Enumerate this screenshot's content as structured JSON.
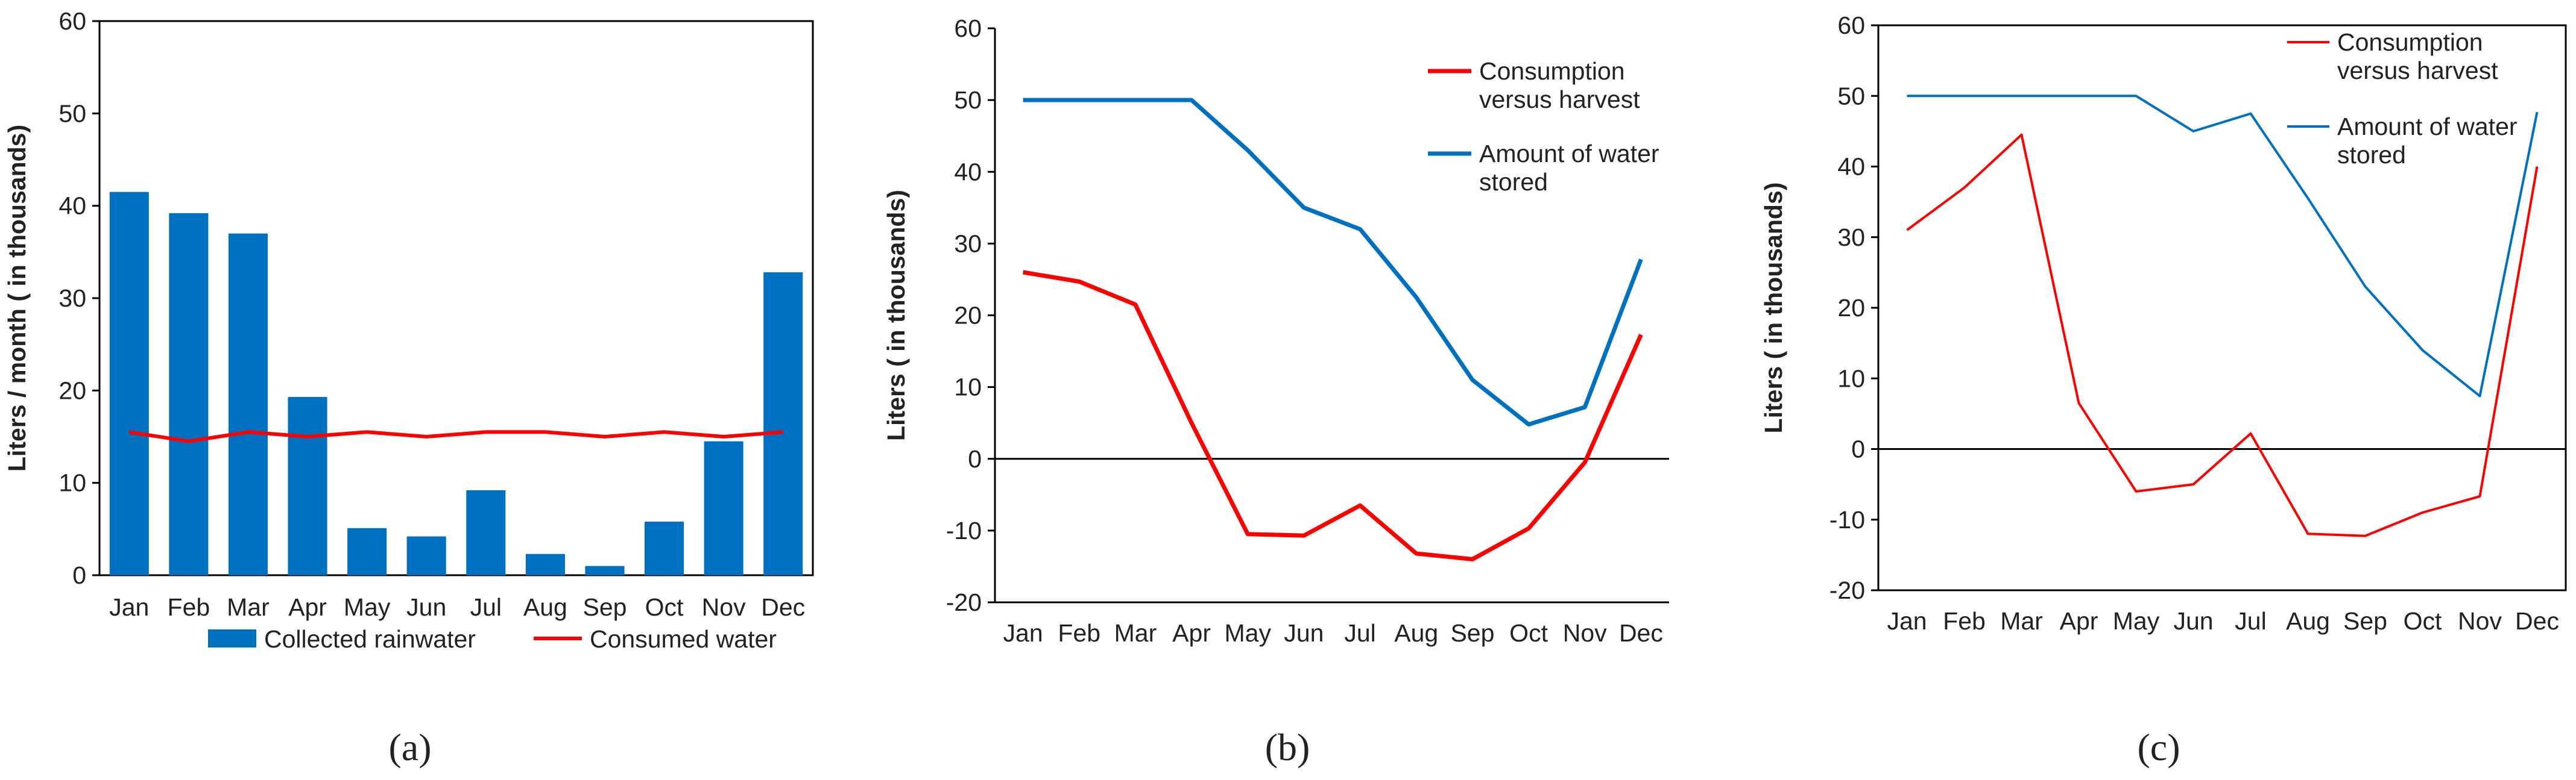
{
  "captions": [
    "(a)",
    "(b)",
    "(c)"
  ],
  "chart_data": [
    {
      "type": "bar",
      "title": "",
      "xlabel": "",
      "ylabel": "Liters / month ( in thousands)",
      "ylim": [
        0,
        60
      ],
      "yticks": [
        0,
        10,
        20,
        30,
        40,
        50,
        60
      ],
      "categories": [
        "Jan",
        "Feb",
        "Mar",
        "Apr",
        "May",
        "Jun",
        "Jul",
        "Aug",
        "Sep",
        "Oct",
        "Nov",
        "Dec"
      ],
      "series": [
        {
          "name": "Collected rainwater",
          "kind": "bar",
          "color": "#0070C0",
          "values": [
            41.5,
            39.2,
            37.0,
            19.3,
            5.1,
            4.2,
            9.2,
            2.3,
            1.0,
            5.8,
            14.5,
            32.8
          ]
        },
        {
          "name": "Consumed water",
          "kind": "line",
          "color": "#FF0000",
          "values": [
            15.5,
            14.5,
            15.5,
            15.0,
            15.5,
            15.0,
            15.5,
            15.5,
            15.0,
            15.5,
            15.0,
            15.5
          ]
        }
      ],
      "legend": "bottom",
      "grid": false
    },
    {
      "type": "line",
      "title": "",
      "xlabel": "",
      "ylabel": "Liters ( in thousands)",
      "ylim": [
        -20,
        60
      ],
      "yticks": [
        -20,
        -10,
        0,
        10,
        20,
        30,
        40,
        50,
        60
      ],
      "categories": [
        "Jan",
        "Feb",
        "Mar",
        "Apr",
        "May",
        "Jun",
        "Jul",
        "Aug",
        "Sep",
        "Oct",
        "Nov",
        "Dec"
      ],
      "series": [
        {
          "name": "Consumption versus harvest",
          "name_lines": [
            "Consumption",
            "versus harvest"
          ],
          "color": "#FF0000",
          "values": [
            26.0,
            24.7,
            21.5,
            5.0,
            -10.5,
            -10.7,
            -6.5,
            -13.2,
            -14.0,
            -9.7,
            -0.5,
            17.3
          ]
        },
        {
          "name": "Amount of water stored",
          "name_lines": [
            "Amount of water",
            "stored"
          ],
          "color": "#0070C0",
          "values": [
            50.0,
            50.0,
            50.0,
            50.0,
            43.0,
            35.0,
            32.0,
            22.5,
            11.0,
            4.8,
            7.2,
            27.8
          ]
        }
      ],
      "legend": "top-right",
      "grid": false
    },
    {
      "type": "line",
      "title": "",
      "xlabel": "",
      "ylabel": "Liters ( in thousands)",
      "ylim": [
        -20,
        60
      ],
      "yticks": [
        -20,
        -10,
        0,
        10,
        20,
        30,
        40,
        50,
        60
      ],
      "categories": [
        "Jan",
        "Feb",
        "Mar",
        "Apr",
        "May",
        "Jun",
        "Jul",
        "Aug",
        "Sep",
        "Oct",
        "Nov",
        "Dec"
      ],
      "series": [
        {
          "name": "Consumption versus harvest",
          "name_lines": [
            "Consumption",
            "versus harvest"
          ],
          "color": "#FF0000",
          "values": [
            31.0,
            37.0,
            44.5,
            6.5,
            -6.0,
            -5.0,
            2.2,
            -12.0,
            -12.3,
            -9.0,
            -6.7,
            40.0
          ]
        },
        {
          "name": "Amount of water stored",
          "name_lines": [
            "Amount of water",
            "stored"
          ],
          "color": "#0070C0",
          "values": [
            50.0,
            50.0,
            50.0,
            50.0,
            50.0,
            45.0,
            47.5,
            35.5,
            23.0,
            14.0,
            7.5,
            47.7
          ]
        }
      ],
      "legend": "top-right",
      "grid": false
    }
  ]
}
